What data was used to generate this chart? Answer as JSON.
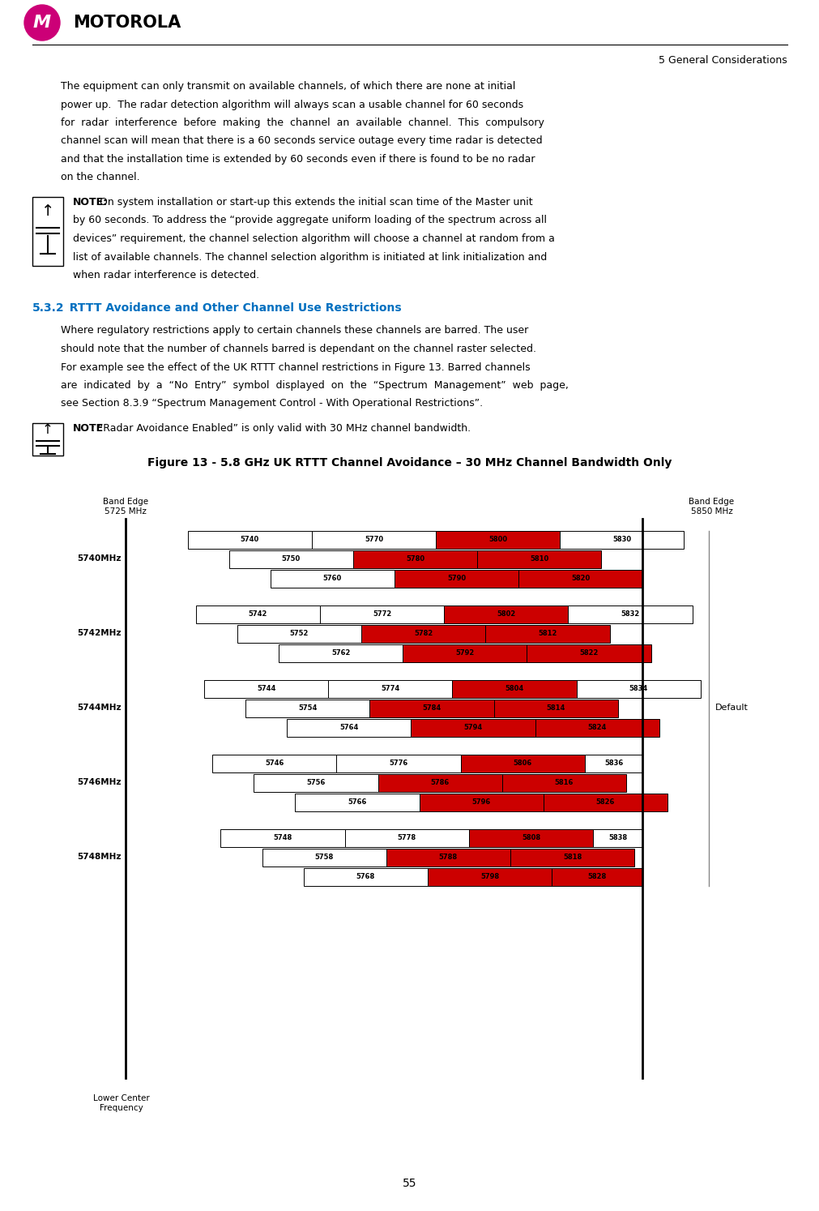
{
  "page_title": "5 General Considerations",
  "page_number": "55",
  "para1": "The equipment can only transmit on available channels, of which there are none at initial power up.  The radar detection algorithm will always scan a usable channel for 60 seconds for radar interference before making the channel an available channel. This compulsory channel scan will mean that there is a 60 seconds service outage every time radar is detected and that the installation time is extended by 60 seconds even if there is found to be no radar on the channel.",
  "note1_bold": "NOTE:",
  "note1_rest": " On system installation or start-up this extends the initial scan time of the Master unit by 60 seconds. To address the “provide aggregate uniform loading of the spectrum across all devices” requirement, the channel selection algorithm will choose a channel at random from a list of available channels. The channel selection algorithm is initiated at link initialization and when radar interference is detected.",
  "section_num": "5.3.2",
  "section_title": "  RTTT Avoidance and Other Channel Use Restrictions",
  "para2": "Where regulatory restrictions apply to certain channels these channels are barred. The user should note that the number of channels barred is dependant on the channel raster selected. For example see the effect of the UK RTTT channel restrictions in Figure 13. Barred channels are indicated by a “No Entry” symbol displayed on the “Spectrum Management” web page, see Section 8.3.9 “Spectrum Management Control - With Operational Restrictions”.",
  "note2_bold": "NOTE",
  "note2_rest": ": “Radar Avoidance Enabled” is only valid with 30 MHz channel bandwidth.",
  "fig_title": "Figure 13 - 5.8 GHz UK RTTT Channel Avoidance – 30 MHz Channel Bandwidth Only",
  "band_edge_left": "Band Edge\n5725 MHz",
  "band_edge_right": "Band Edge\n5850 MHz",
  "default_label": "Default",
  "lower_center_label": "Lower Center\nFrequency",
  "heading_color": "#0070C0",
  "red_color": "#CC0000",
  "chart_groups": [
    {
      "label": "5740MHz",
      "rows": [
        {
          "segs": [
            {
              "s": 5740,
              "e": 5770,
              "c": "w"
            },
            {
              "s": 5770,
              "e": 5800,
              "c": "w"
            },
            {
              "s": 5800,
              "e": 5830,
              "c": "r"
            },
            {
              "s": 5830,
              "e": 5860,
              "c": "w"
            }
          ]
        },
        {
          "segs": [
            {
              "s": 5750,
              "e": 5780,
              "c": "w"
            },
            {
              "s": 5780,
              "e": 5810,
              "c": "r"
            },
            {
              "s": 5810,
              "e": 5840,
              "c": "r"
            }
          ]
        },
        {
          "segs": [
            {
              "s": 5760,
              "e": 5790,
              "c": "w"
            },
            {
              "s": 5790,
              "e": 5820,
              "c": "r"
            },
            {
              "s": 5820,
              "e": 5850,
              "c": "r"
            }
          ]
        }
      ]
    },
    {
      "label": "5742MHz",
      "rows": [
        {
          "segs": [
            {
              "s": 5742,
              "e": 5772,
              "c": "w"
            },
            {
              "s": 5772,
              "e": 5802,
              "c": "w"
            },
            {
              "s": 5802,
              "e": 5832,
              "c": "r"
            },
            {
              "s": 5832,
              "e": 5862,
              "c": "w"
            }
          ]
        },
        {
          "segs": [
            {
              "s": 5752,
              "e": 5782,
              "c": "w"
            },
            {
              "s": 5782,
              "e": 5812,
              "c": "r"
            },
            {
              "s": 5812,
              "e": 5842,
              "c": "r"
            }
          ]
        },
        {
          "segs": [
            {
              "s": 5762,
              "e": 5792,
              "c": "w"
            },
            {
              "s": 5792,
              "e": 5822,
              "c": "r"
            },
            {
              "s": 5822,
              "e": 5852,
              "c": "r"
            }
          ]
        }
      ]
    },
    {
      "label": "5744MHz",
      "rows": [
        {
          "segs": [
            {
              "s": 5744,
              "e": 5774,
              "c": "w"
            },
            {
              "s": 5774,
              "e": 5804,
              "c": "w"
            },
            {
              "s": 5804,
              "e": 5834,
              "c": "r"
            },
            {
              "s": 5834,
              "e": 5864,
              "c": "w"
            }
          ]
        },
        {
          "segs": [
            {
              "s": 5754,
              "e": 5784,
              "c": "w"
            },
            {
              "s": 5784,
              "e": 5814,
              "c": "r"
            },
            {
              "s": 5814,
              "e": 5844,
              "c": "r"
            }
          ]
        },
        {
          "segs": [
            {
              "s": 5764,
              "e": 5794,
              "c": "w"
            },
            {
              "s": 5794,
              "e": 5824,
              "c": "r"
            },
            {
              "s": 5824,
              "e": 5854,
              "c": "r"
            }
          ]
        }
      ]
    },
    {
      "label": "5746MHz",
      "rows": [
        {
          "segs": [
            {
              "s": 5746,
              "e": 5776,
              "c": "w"
            },
            {
              "s": 5776,
              "e": 5806,
              "c": "w"
            },
            {
              "s": 5806,
              "e": 5836,
              "c": "r"
            },
            {
              "s": 5836,
              "e": 5850,
              "c": "w"
            }
          ]
        },
        {
          "segs": [
            {
              "s": 5756,
              "e": 5786,
              "c": "w"
            },
            {
              "s": 5786,
              "e": 5816,
              "c": "r"
            },
            {
              "s": 5816,
              "e": 5846,
              "c": "r"
            }
          ]
        },
        {
          "segs": [
            {
              "s": 5766,
              "e": 5796,
              "c": "w"
            },
            {
              "s": 5796,
              "e": 5826,
              "c": "r"
            },
            {
              "s": 5826,
              "e": 5856,
              "c": "r"
            }
          ]
        }
      ]
    },
    {
      "label": "5748MHz",
      "rows": [
        {
          "segs": [
            {
              "s": 5748,
              "e": 5778,
              "c": "w"
            },
            {
              "s": 5778,
              "e": 5808,
              "c": "w"
            },
            {
              "s": 5808,
              "e": 5838,
              "c": "r"
            },
            {
              "s": 5838,
              "e": 5850,
              "c": "w"
            }
          ]
        },
        {
          "segs": [
            {
              "s": 5758,
              "e": 5788,
              "c": "w"
            },
            {
              "s": 5788,
              "e": 5818,
              "c": "r"
            },
            {
              "s": 5818,
              "e": 5848,
              "c": "r"
            }
          ]
        },
        {
          "segs": [
            {
              "s": 5768,
              "e": 5798,
              "c": "w"
            },
            {
              "s": 5798,
              "e": 5828,
              "c": "r"
            },
            {
              "s": 5828,
              "e": 5850,
              "c": "r"
            }
          ]
        }
      ]
    }
  ],
  "freq_min": 5725,
  "freq_max": 5865
}
